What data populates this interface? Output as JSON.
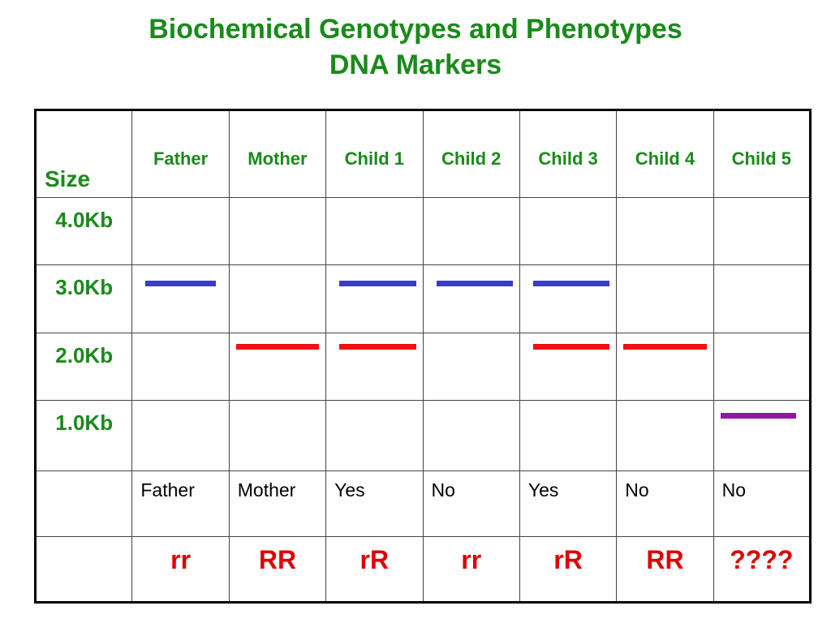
{
  "title": {
    "line1": "Biochemical Genotypes and Phenotypes",
    "line2": "DNA Markers"
  },
  "table": {
    "size_header": "Size",
    "columns": [
      "Father",
      "Mother",
      "Child 1",
      "Child 2",
      "Child 3",
      "Child 4",
      "Child 5"
    ],
    "sizes": [
      "4.0Kb",
      "3.0Kb",
      "2.0Kb",
      "1.0Kb"
    ],
    "band_colors": {
      "3.0Kb": "#3a3acc",
      "2.0Kb": "#ee1111",
      "1.0Kb": "#9911aa"
    },
    "bands": {
      "4.0Kb": [
        false,
        false,
        false,
        false,
        false,
        false,
        false
      ],
      "3.0Kb": [
        true,
        false,
        true,
        true,
        true,
        false,
        false
      ],
      "2.0Kb": [
        false,
        true,
        true,
        false,
        true,
        true,
        false
      ],
      "1.0Kb": [
        false,
        false,
        false,
        false,
        false,
        false,
        true
      ]
    },
    "phenotypes": [
      "Father",
      "Mother",
      "Yes",
      "No",
      "Yes",
      "No",
      "No"
    ],
    "genotypes": [
      "rr",
      "RR",
      "rR",
      "rr",
      "rR",
      "RR",
      "????"
    ]
  }
}
